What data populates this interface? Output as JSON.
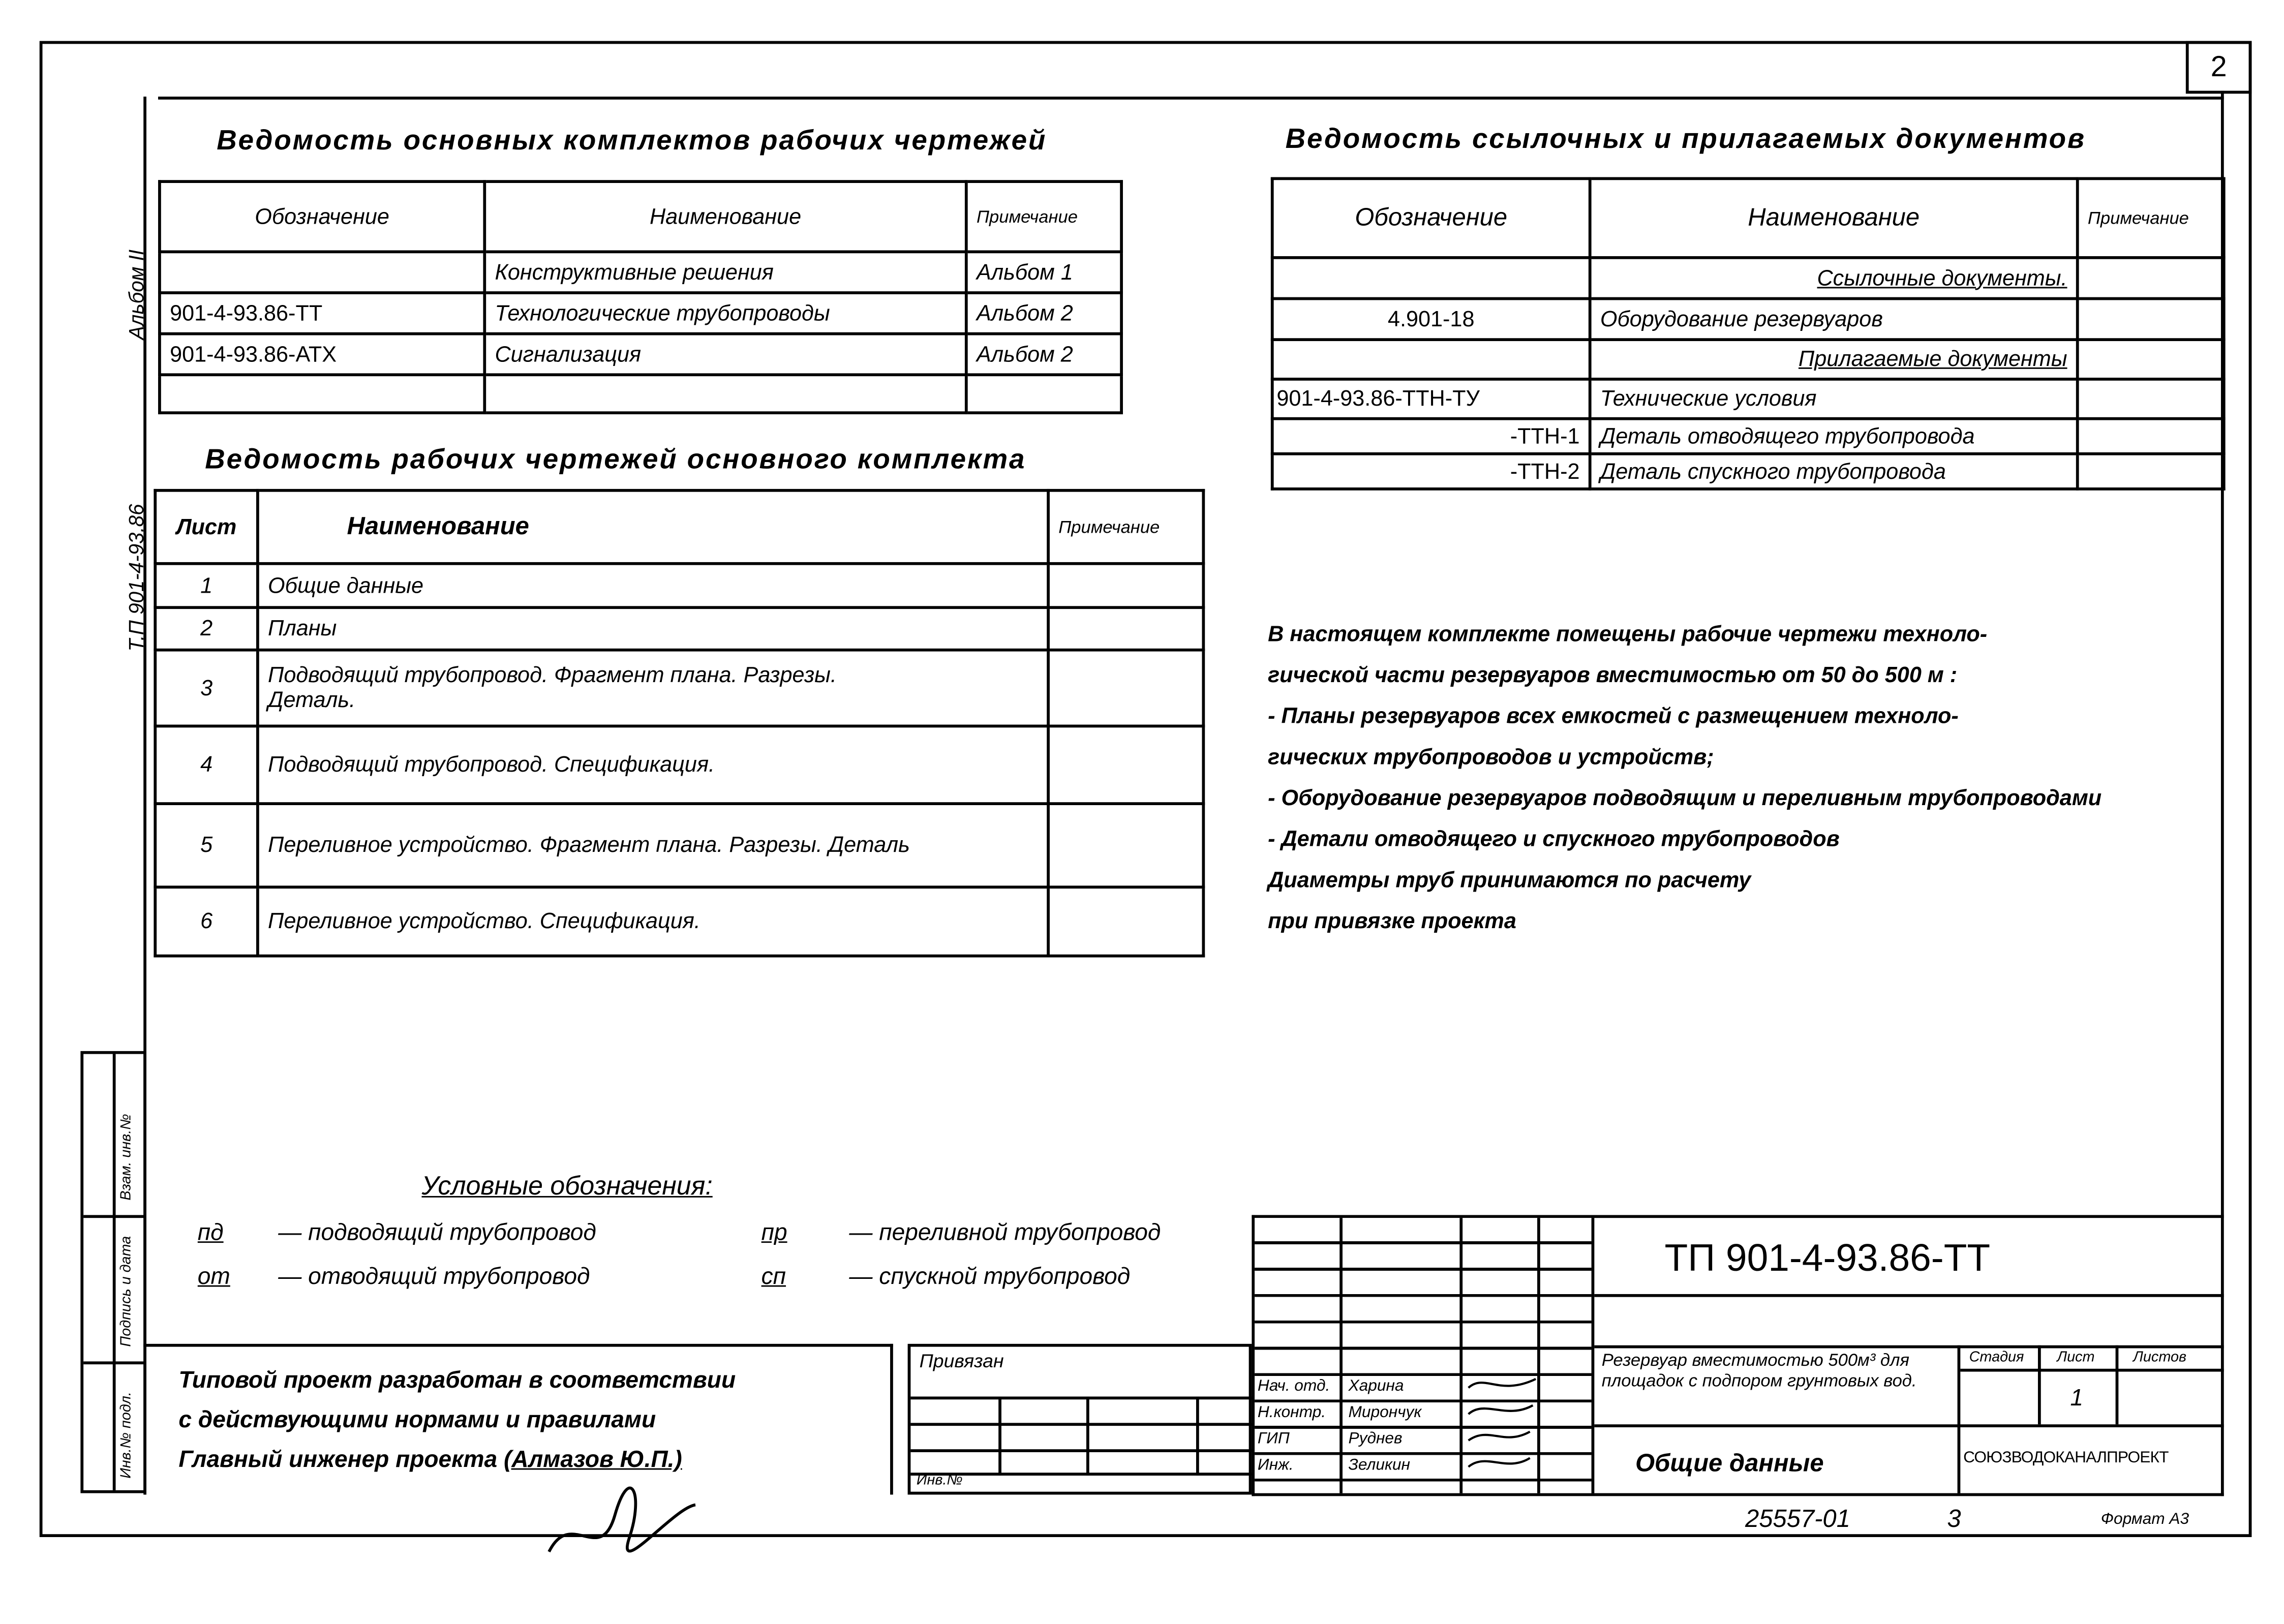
{
  "sheet_number": "2",
  "side_labels": {
    "album": "Альбом II",
    "code": "Т.П 901-4-93.86"
  },
  "side_stamp": [
    "Инв.№ подл.",
    "Подпись и дата",
    "Взам. инв.№"
  ],
  "main_sets": {
    "title": "Ведомость основных комплектов рабочих чертежей",
    "headers": [
      "Обозначение",
      "Наименование",
      "Примечание"
    ],
    "rows": [
      [
        "",
        "Конструктивные решения",
        "Альбом 1"
      ],
      [
        "901-4-93.86-ТТ",
        "Технологические трубопроводы",
        "Альбом 2"
      ],
      [
        "901-4-93.86-АТХ",
        "Сигнализация",
        "Альбом 2"
      ],
      [
        "",
        "",
        ""
      ]
    ]
  },
  "drawings": {
    "title": "Ведомость рабочих чертежей основного комплекта",
    "headers": [
      "Лист",
      "Наименование",
      "Примечание"
    ],
    "rows": [
      [
        "1",
        "Общие данные",
        ""
      ],
      [
        "2",
        "Планы",
        ""
      ],
      [
        "3",
        "Подводящий трубопровод. Фрагмент плана. Разрезы. Деталь.",
        ""
      ],
      [
        "4",
        "Подводящий трубопровод. Спецификация.",
        ""
      ],
      [
        "5",
        "Переливное устройство. Фрагмент плана. Разрезы. Деталь",
        ""
      ],
      [
        "6",
        "Переливное устройство. Спецификация.",
        ""
      ]
    ]
  },
  "ref_docs": {
    "title": "Ведомость ссылочных и прилагаемых документов",
    "headers": [
      "Обозначение",
      "Наименование",
      "Примечание"
    ],
    "rows": [
      [
        "",
        "Ссылочные документы.",
        ""
      ],
      [
        "4.901-18",
        "Оборудование резервуаров",
        ""
      ],
      [
        "",
        "Прилагаемые документы",
        ""
      ],
      [
        "901-4-93.86-ТТН-ТУ",
        "Технические условия",
        ""
      ],
      [
        "-ТТН-1",
        "Деталь отводящего трубопровода",
        ""
      ],
      [
        "-ТТН-2",
        "Деталь спускного трубопровода",
        ""
      ]
    ]
  },
  "notes": [
    "В настоящем комплекте помещены рабочие чертежи техноло-",
    "гической части резервуаров вместимостью от 50 до 500 м :",
    "- Планы резервуаров всех емкостей с размещением техноло-",
    "гических трубопроводов и устройств;",
    "- Оборудование резервуаров подводящим и переливным трубопроводами",
    "- Детали отводящего и спускного трубопроводов",
    "Диаметры труб принимаются по расчету",
    "при привязке проекта"
  ],
  "legend": {
    "title": "Условные обозначения:",
    "items": [
      {
        "code": "пд",
        "text": "— подводящий трубопровод"
      },
      {
        "code": "от",
        "text": "— отводящий трубопровод"
      },
      {
        "code": "пр",
        "text": "— переливной трубопровод"
      },
      {
        "code": "сп",
        "text": "— спускной трубопровод"
      }
    ]
  },
  "statement": [
    "Типовой проект разработан в соответствии",
    "с действующими нормами и правилами",
    "Главный инженер проекта",
    "(Алмазов Ю.П.)"
  ],
  "binding": {
    "label": "Привязан",
    "inv": "Инв.№"
  },
  "title_block": {
    "code": "ТП 901-4-93.86-ТТ",
    "description": "Резервуар вместимостью 500м³ для площадок с подпором грунтовых вод.",
    "sheet_title": "Общие данные",
    "stage_h": "Стадия",
    "sheet_h": "Лист",
    "sheets_h": "Листов",
    "sheet": "1",
    "org": "СОЮЗВОДОКАНАЛПРОЕКТ",
    "staff": [
      [
        "Нач. отд.",
        "Харина"
      ],
      [
        "Н.контр.",
        "Мирончук"
      ],
      [
        "ГИП",
        "Руднев"
      ],
      [
        "Инж.",
        "Зеликин"
      ]
    ]
  },
  "footer": {
    "inv": "25557-01",
    "num": "3",
    "format": "Формат А3"
  }
}
